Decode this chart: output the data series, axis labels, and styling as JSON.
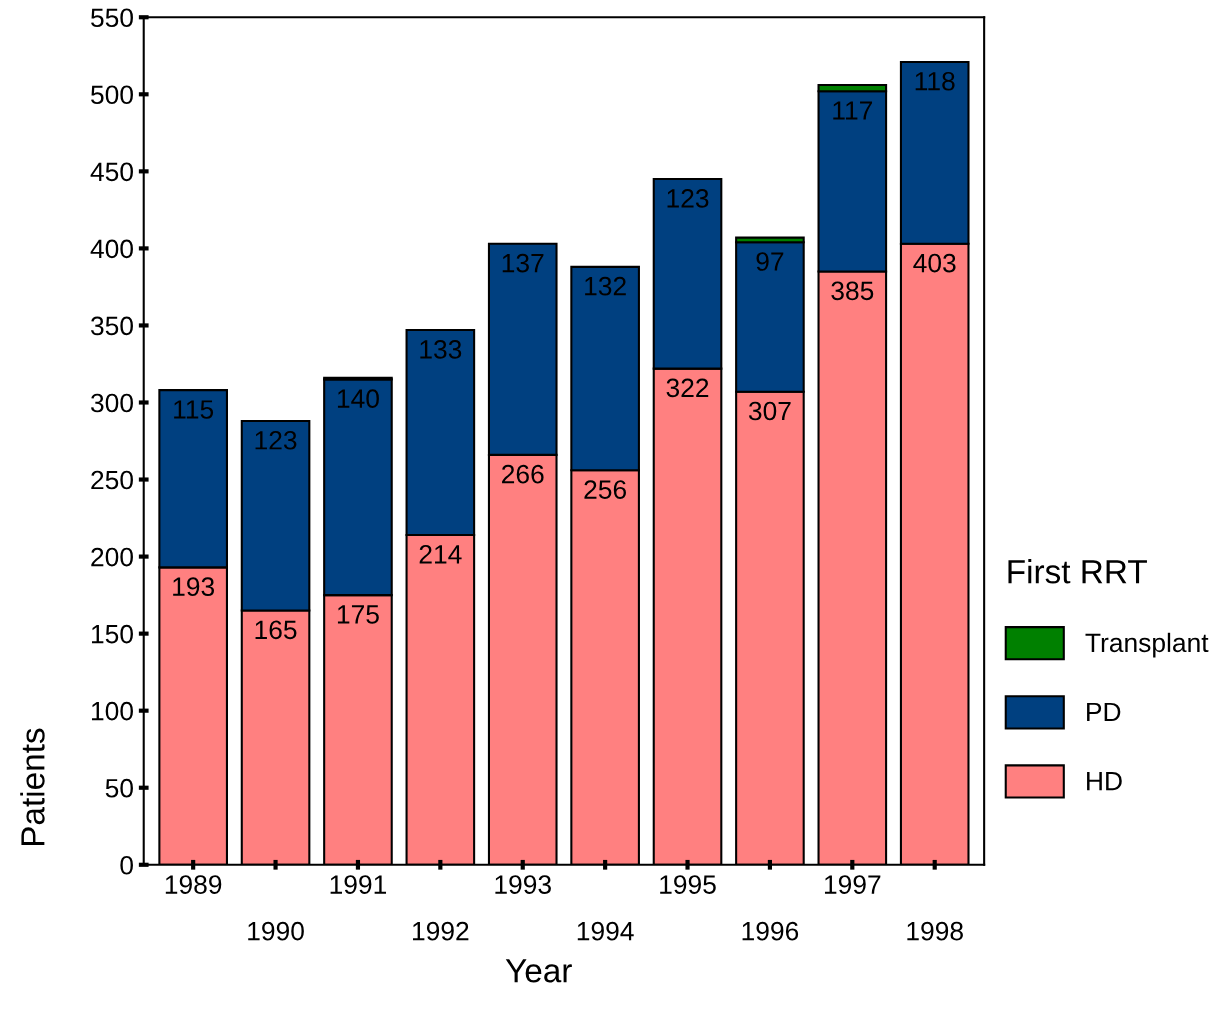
{
  "chart_data": {
    "type": "bar",
    "stacked": true,
    "xlabel": "Year",
    "ylabel": "Patients",
    "legend_title": "First RRT",
    "legend": "right",
    "grid": false,
    "categories": [
      "1989",
      "1990",
      "1991",
      "1992",
      "1993",
      "1994",
      "1995",
      "1996",
      "1997",
      "1998"
    ],
    "ylim": [
      0,
      550
    ],
    "yticks": [
      0,
      50,
      100,
      150,
      200,
      250,
      300,
      350,
      400,
      450,
      500,
      550
    ],
    "series": [
      {
        "name": "HD",
        "color": "#ff8080",
        "values": [
          193,
          165,
          175,
          214,
          266,
          256,
          322,
          307,
          385,
          403
        ],
        "value_labels": [
          "193",
          "165",
          "175",
          "214",
          "266",
          "256",
          "322",
          "307",
          "385",
          "403"
        ]
      },
      {
        "name": "PD",
        "color": "#004080",
        "values": [
          115,
          123,
          140,
          133,
          137,
          132,
          123,
          97,
          117,
          118
        ],
        "value_labels": [
          "115",
          "123",
          "140",
          "133",
          "137",
          "132",
          "123",
          "97",
          "117",
          "118"
        ]
      },
      {
        "name": "Transplant",
        "color": "#008000",
        "values": [
          null,
          null,
          1,
          null,
          null,
          null,
          null,
          3,
          4,
          null
        ]
      }
    ]
  }
}
